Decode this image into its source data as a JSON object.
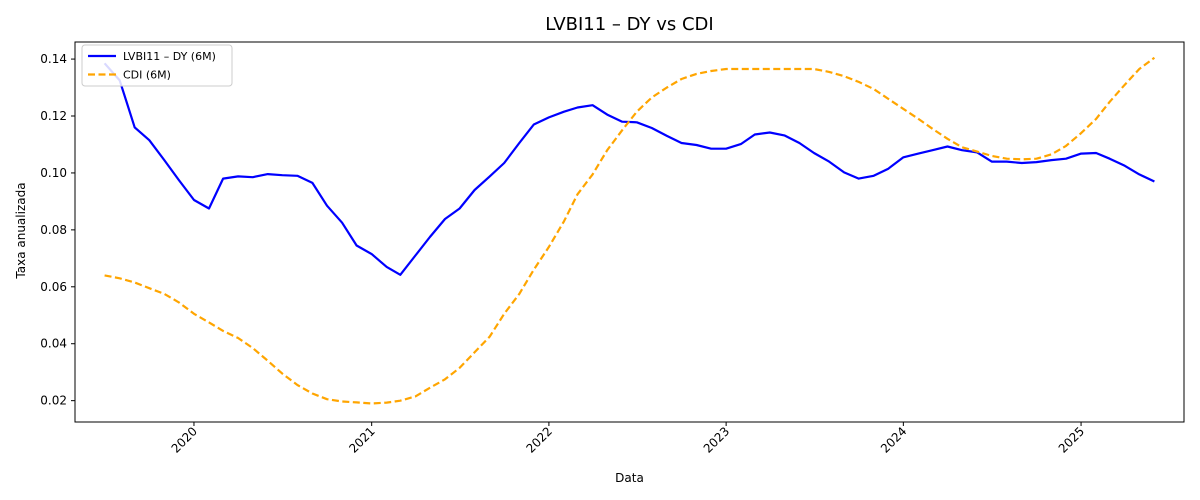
{
  "chart_data": {
    "type": "line",
    "title": "LVBI11 – DY vs CDI",
    "xlabel": "Data",
    "ylabel": "Taxa anualizada",
    "xlim": [
      "2019-05-01",
      "2025-08-01"
    ],
    "ylim": [
      0.0125,
      0.146
    ],
    "x_ticks": [
      "2020",
      "2021",
      "2022",
      "2023",
      "2024",
      "2025"
    ],
    "y_ticks": [
      "0.02",
      "0.04",
      "0.06",
      "0.08",
      "0.10",
      "0.12",
      "0.14"
    ],
    "grid": false,
    "legend_position": "top-left",
    "series": [
      {
        "name": "LVBI11 – DY (6M)",
        "color": "#0000ff",
        "style": "solid",
        "points": [
          [
            "2019-07-01",
            0.1385
          ],
          [
            "2019-08-01",
            0.1325
          ],
          [
            "2019-09-01",
            0.116
          ],
          [
            "2019-10-01",
            0.1115
          ],
          [
            "2019-11-01",
            0.1045
          ],
          [
            "2019-12-01",
            0.0975
          ],
          [
            "2020-01-01",
            0.0905
          ],
          [
            "2020-02-01",
            0.0875
          ],
          [
            "2020-03-01",
            0.098
          ],
          [
            "2020-04-01",
            0.0988
          ],
          [
            "2020-05-01",
            0.0985
          ],
          [
            "2020-06-01",
            0.0996
          ],
          [
            "2020-07-01",
            0.0992
          ],
          [
            "2020-08-01",
            0.099
          ],
          [
            "2020-09-01",
            0.0965
          ],
          [
            "2020-10-01",
            0.0885
          ],
          [
            "2020-11-01",
            0.0825
          ],
          [
            "2020-12-01",
            0.0745
          ],
          [
            "2021-01-01",
            0.0715
          ],
          [
            "2021-02-01",
            0.067
          ],
          [
            "2021-03-01",
            0.0642
          ],
          [
            "2021-04-01",
            0.071
          ],
          [
            "2021-05-01",
            0.0775
          ],
          [
            "2021-06-01",
            0.0838
          ],
          [
            "2021-07-01",
            0.0875
          ],
          [
            "2021-08-01",
            0.094
          ],
          [
            "2021-09-01",
            0.0988
          ],
          [
            "2021-10-01",
            0.1035
          ],
          [
            "2021-11-01",
            0.1105
          ],
          [
            "2021-12-01",
            0.117
          ],
          [
            "2022-01-01",
            0.1195
          ],
          [
            "2022-02-01",
            0.1215
          ],
          [
            "2022-03-01",
            0.123
          ],
          [
            "2022-04-01",
            0.1238
          ],
          [
            "2022-05-01",
            0.1205
          ],
          [
            "2022-06-01",
            0.118
          ],
          [
            "2022-07-01",
            0.1178
          ],
          [
            "2022-08-01",
            0.1158
          ],
          [
            "2022-09-01",
            0.113
          ],
          [
            "2022-10-01",
            0.1105
          ],
          [
            "2022-11-01",
            0.1098
          ],
          [
            "2022-12-01",
            0.1085
          ],
          [
            "2023-01-01",
            0.1085
          ],
          [
            "2023-02-01",
            0.1102
          ],
          [
            "2023-03-01",
            0.1135
          ],
          [
            "2023-04-01",
            0.1142
          ],
          [
            "2023-05-01",
            0.1132
          ],
          [
            "2023-06-01",
            0.1105
          ],
          [
            "2023-07-01",
            0.107
          ],
          [
            "2023-08-01",
            0.104
          ],
          [
            "2023-09-01",
            0.1002
          ],
          [
            "2023-10-01",
            0.098
          ],
          [
            "2023-11-01",
            0.099
          ],
          [
            "2023-12-01",
            0.1015
          ],
          [
            "2024-01-01",
            0.1055
          ],
          [
            "2024-02-01",
            0.1068
          ],
          [
            "2024-03-01",
            0.108
          ],
          [
            "2024-04-01",
            0.1093
          ],
          [
            "2024-05-01",
            0.108
          ],
          [
            "2024-06-01",
            0.1072
          ],
          [
            "2024-07-01",
            0.104
          ],
          [
            "2024-08-01",
            0.104
          ],
          [
            "2024-09-01",
            0.1035
          ],
          [
            "2024-10-01",
            0.1038
          ],
          [
            "2024-11-01",
            0.1045
          ],
          [
            "2024-12-01",
            0.105
          ],
          [
            "2025-01-01",
            0.1068
          ],
          [
            "2025-02-01",
            0.107
          ],
          [
            "2025-03-01",
            0.105
          ],
          [
            "2025-04-01",
            0.1025
          ],
          [
            "2025-05-01",
            0.0995
          ],
          [
            "2025-06-01",
            0.097
          ]
        ]
      },
      {
        "name": "CDI (6M)",
        "color": "#ffa500",
        "style": "dashed",
        "points": [
          [
            "2019-07-01",
            0.064
          ],
          [
            "2019-08-01",
            0.063
          ],
          [
            "2019-09-01",
            0.0615
          ],
          [
            "2019-10-01",
            0.0595
          ],
          [
            "2019-11-01",
            0.0575
          ],
          [
            "2019-12-01",
            0.0545
          ],
          [
            "2020-01-01",
            0.0505
          ],
          [
            "2020-02-01",
            0.0475
          ],
          [
            "2020-03-01",
            0.0445
          ],
          [
            "2020-04-01",
            0.042
          ],
          [
            "2020-05-01",
            0.0385
          ],
          [
            "2020-06-01",
            0.034
          ],
          [
            "2020-07-01",
            0.0295
          ],
          [
            "2020-08-01",
            0.0255
          ],
          [
            "2020-09-01",
            0.0225
          ],
          [
            "2020-10-01",
            0.0205
          ],
          [
            "2020-11-01",
            0.0197
          ],
          [
            "2020-12-01",
            0.0194
          ],
          [
            "2021-01-01",
            0.019
          ],
          [
            "2021-02-01",
            0.0193
          ],
          [
            "2021-03-01",
            0.02
          ],
          [
            "2021-04-01",
            0.0215
          ],
          [
            "2021-05-01",
            0.0245
          ],
          [
            "2021-06-01",
            0.0275
          ],
          [
            "2021-07-01",
            0.0315
          ],
          [
            "2021-08-01",
            0.037
          ],
          [
            "2021-09-01",
            0.0425
          ],
          [
            "2021-10-01",
            0.0505
          ],
          [
            "2021-11-01",
            0.0575
          ],
          [
            "2021-12-01",
            0.066
          ],
          [
            "2022-01-01",
            0.074
          ],
          [
            "2022-02-01",
            0.083
          ],
          [
            "2022-03-01",
            0.0925
          ],
          [
            "2022-04-01",
            0.0995
          ],
          [
            "2022-05-01",
            0.108
          ],
          [
            "2022-06-01",
            0.115
          ],
          [
            "2022-07-01",
            0.1215
          ],
          [
            "2022-08-01",
            0.1265
          ],
          [
            "2022-09-01",
            0.13
          ],
          [
            "2022-10-01",
            0.133
          ],
          [
            "2022-11-01",
            0.1348
          ],
          [
            "2022-12-01",
            0.1358
          ],
          [
            "2023-01-01",
            0.1365
          ],
          [
            "2023-02-01",
            0.1365
          ],
          [
            "2023-03-01",
            0.1365
          ],
          [
            "2023-04-01",
            0.1365
          ],
          [
            "2023-05-01",
            0.1365
          ],
          [
            "2023-06-01",
            0.1365
          ],
          [
            "2023-07-01",
            0.1365
          ],
          [
            "2023-08-01",
            0.1355
          ],
          [
            "2023-09-01",
            0.134
          ],
          [
            "2023-10-01",
            0.132
          ],
          [
            "2023-11-01",
            0.1295
          ],
          [
            "2023-12-01",
            0.126
          ],
          [
            "2024-01-01",
            0.1225
          ],
          [
            "2024-02-01",
            0.119
          ],
          [
            "2024-03-01",
            0.1155
          ],
          [
            "2024-04-01",
            0.112
          ],
          [
            "2024-05-01",
            0.109
          ],
          [
            "2024-06-01",
            0.1075
          ],
          [
            "2024-07-01",
            0.106
          ],
          [
            "2024-08-01",
            0.105
          ],
          [
            "2024-09-01",
            0.1048
          ],
          [
            "2024-10-01",
            0.105
          ],
          [
            "2024-11-01",
            0.1065
          ],
          [
            "2024-12-01",
            0.1095
          ],
          [
            "2025-01-01",
            0.114
          ],
          [
            "2025-02-01",
            0.119
          ],
          [
            "2025-03-01",
            0.125
          ],
          [
            "2025-04-01",
            0.131
          ],
          [
            "2025-05-01",
            0.1365
          ],
          [
            "2025-06-01",
            0.1405
          ]
        ]
      }
    ]
  }
}
